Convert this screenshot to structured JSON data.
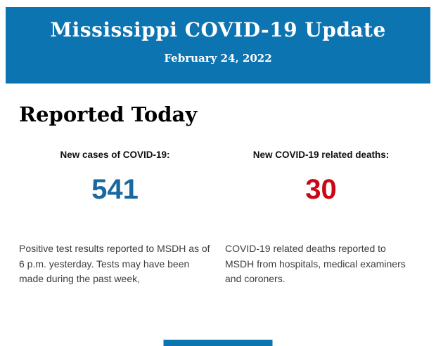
{
  "theme": {
    "header_bg": "#0C74B0",
    "cases_color": "#19699E",
    "deaths_color": "#CA0815",
    "heading_color": "#000000",
    "text_color": "#3D3D3D"
  },
  "header": {
    "title": "Mississippi COVID-19 Update",
    "date": "February 24, 2022"
  },
  "main": {
    "section_title": "Reported Today",
    "stats": [
      {
        "label": "New cases of COVID-19:",
        "value": "541",
        "description": "Positive test results reported to MSDH as of 6 p.m. yesterday. Tests may have been made during the past week,"
      },
      {
        "label": "New COVID-19 related deaths:",
        "value": "30",
        "description": "COVID-19 related deaths reported to MSDH from hospitals, medical examiners and coroners."
      }
    ]
  }
}
